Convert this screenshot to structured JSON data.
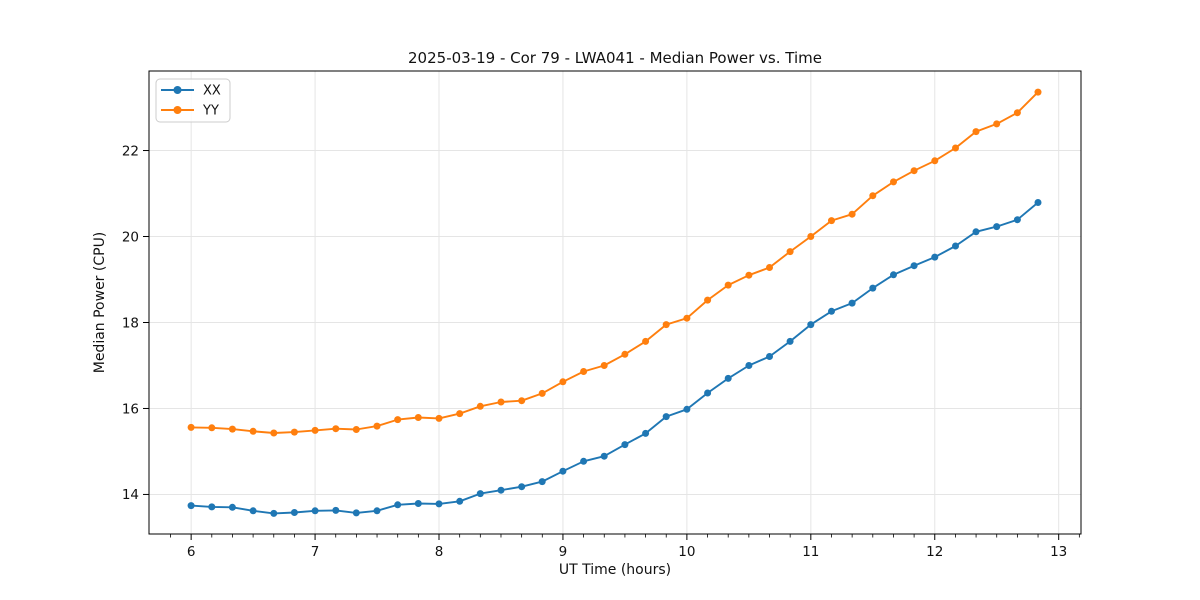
{
  "chart_data": {
    "type": "line",
    "title": "2025-03-19 - Cor 79 - LWA041 - Median Power vs. Time",
    "xlabel": "UT Time (hours)",
    "ylabel": "Median Power (CPU)",
    "xlim": [
      5.66,
      13.18
    ],
    "ylim": [
      13.08,
      23.85
    ],
    "x_major_ticks": [
      6,
      7,
      8,
      9,
      10,
      11,
      12,
      13
    ],
    "x_minor_step": 0.166667,
    "y_major_ticks": [
      14,
      16,
      18,
      20,
      22
    ],
    "grid": true,
    "legend_position": "upper-left",
    "x": [
      6.0,
      6.167,
      6.333,
      6.5,
      6.667,
      6.833,
      7.0,
      7.167,
      7.333,
      7.5,
      7.667,
      7.833,
      8.0,
      8.167,
      8.333,
      8.5,
      8.667,
      8.833,
      9.0,
      9.167,
      9.333,
      9.5,
      9.667,
      9.833,
      10.0,
      10.167,
      10.333,
      10.5,
      10.667,
      10.833,
      11.0,
      11.167,
      11.333,
      11.5,
      11.667,
      11.833,
      12.0,
      12.167,
      12.333,
      12.5,
      12.667,
      12.833
    ],
    "series": [
      {
        "name": "XX",
        "color": "#1f77b4",
        "values": [
          13.74,
          13.71,
          13.7,
          13.62,
          13.56,
          13.58,
          13.62,
          13.63,
          13.57,
          13.62,
          13.76,
          13.79,
          13.78,
          13.84,
          14.02,
          14.1,
          14.18,
          14.3,
          14.54,
          14.77,
          14.89,
          15.16,
          15.42,
          15.81,
          15.98,
          16.36,
          16.7,
          17.0,
          17.21,
          17.56,
          17.95,
          18.26,
          18.45,
          18.8,
          19.11,
          19.32,
          19.52,
          19.78,
          20.11,
          20.23,
          20.39,
          20.79
        ]
      },
      {
        "name": "YY",
        "color": "#ff7f0e",
        "values": [
          15.56,
          15.55,
          15.52,
          15.47,
          15.43,
          15.45,
          15.49,
          15.53,
          15.51,
          15.59,
          15.74,
          15.79,
          15.77,
          15.88,
          16.05,
          16.15,
          16.18,
          16.35,
          16.62,
          16.86,
          17.0,
          17.26,
          17.56,
          17.95,
          18.1,
          18.52,
          18.87,
          19.1,
          19.28,
          19.65,
          20.0,
          20.37,
          20.52,
          20.95,
          21.27,
          21.53,
          21.76,
          22.06,
          22.44,
          22.62,
          22.88,
          23.36
        ]
      }
    ]
  },
  "style": {
    "grid_color": "#e5e5e5",
    "spine_color": "#000000",
    "legend_border_color": "#cccccc",
    "legend_bg": "rgba(255,255,255,0.85)"
  }
}
